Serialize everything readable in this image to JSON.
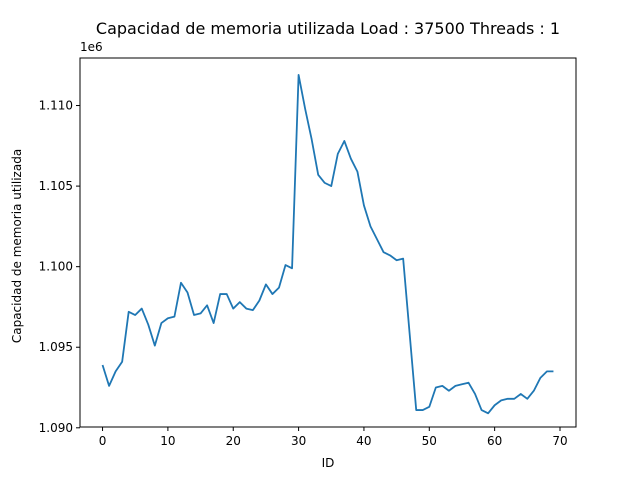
{
  "chart_data": {
    "type": "line",
    "title": "Capacidad de memoria utilizada Load : 37500 Threads : 1",
    "xlabel": "ID",
    "ylabel": "Capacidad de memoria utilizada",
    "offset_text": "1e6",
    "xlim": [
      -3.45,
      72.45
    ],
    "ylim": [
      1.09005,
      1.11295
    ],
    "xticks": [
      0,
      10,
      20,
      30,
      40,
      50,
      60,
      70
    ],
    "xtick_labels": [
      "0",
      "10",
      "20",
      "30",
      "40",
      "50",
      "60",
      "70"
    ],
    "yticks": [
      1.09,
      1.095,
      1.1,
      1.105,
      1.11
    ],
    "ytick_labels": [
      "1.090",
      "1.095",
      "1.100",
      "1.105",
      "1.110"
    ],
    "grid": false,
    "series": [
      {
        "color": "#1f77b4",
        "x": [
          0,
          1,
          2,
          3,
          4,
          5,
          6,
          7,
          8,
          9,
          10,
          11,
          12,
          13,
          14,
          15,
          16,
          17,
          18,
          19,
          20,
          21,
          22,
          23,
          24,
          25,
          26,
          27,
          28,
          29,
          30,
          31,
          32,
          33,
          34,
          35,
          36,
          37,
          38,
          39,
          40,
          41,
          42,
          43,
          44,
          45,
          46,
          47,
          48,
          49,
          50,
          51,
          52,
          53,
          54,
          55,
          56,
          57,
          58,
          59,
          60,
          61,
          62,
          63,
          64,
          65,
          66,
          67,
          68,
          69
        ],
        "y": [
          1.0939,
          1.0926,
          1.0935,
          1.0941,
          1.0972,
          1.097,
          1.0974,
          1.0964,
          1.0951,
          1.0965,
          1.0968,
          1.0969,
          1.099,
          1.0984,
          1.097,
          1.0971,
          1.0976,
          1.0965,
          1.0983,
          1.0983,
          1.0974,
          1.0978,
          1.0974,
          1.0973,
          1.0979,
          1.0989,
          1.0983,
          1.0987,
          1.1001,
          1.0999,
          1.1119,
          1.1098,
          1.1079,
          1.1057,
          1.1052,
          1.105,
          1.107,
          1.1078,
          1.1067,
          1.1059,
          1.1038,
          1.1025,
          1.1017,
          1.1009,
          1.1007,
          1.1004,
          1.1005,
          1.0958,
          1.0911,
          1.0911,
          1.0913,
          1.0925,
          1.0926,
          1.0923,
          1.0926,
          1.0927,
          1.0928,
          1.0921,
          1.0911,
          1.0909,
          1.0914,
          1.0917,
          1.0918,
          1.0918,
          1.0921,
          1.0918,
          1.0923,
          1.0931,
          1.0935,
          1.0935
        ]
      }
    ]
  }
}
